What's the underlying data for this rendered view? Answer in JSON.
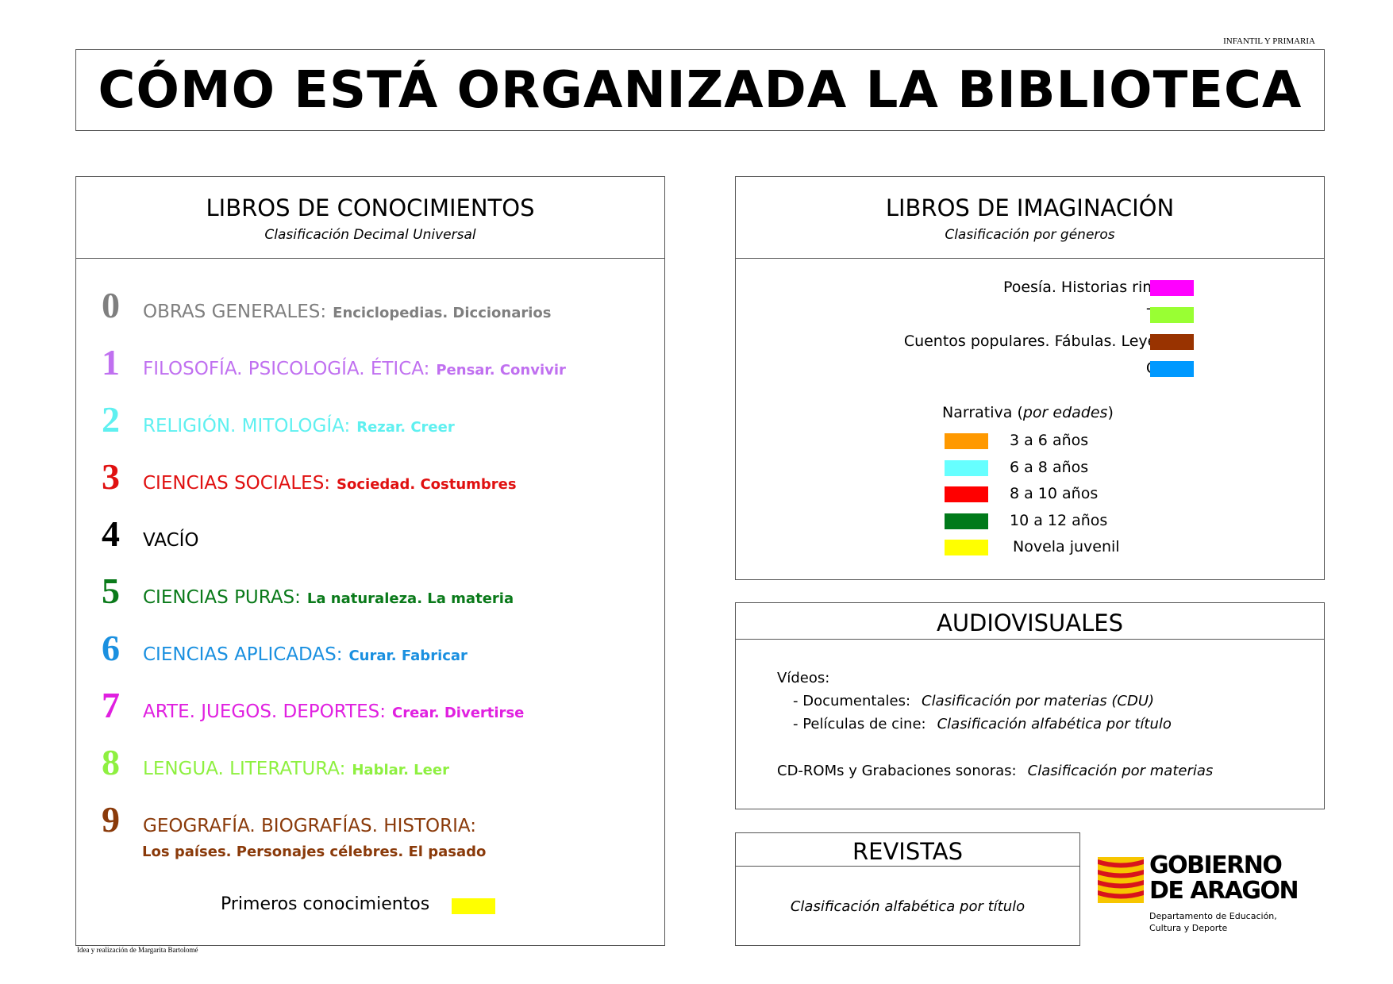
{
  "header": {
    "level_note": "INFANTIL Y PRIMARIA",
    "title": "CÓMO ESTÁ ORGANIZADA LA BIBLIOTECA"
  },
  "conocimientos": {
    "title": "LIBROS DE CONOCIMIENTOS",
    "subtitle": "Clasificación Decimal Universal",
    "items": [
      {
        "number": "0",
        "category": "OBRAS GENERALES:",
        "description": "Enciclopedias. Diccionarios",
        "color": "#7f7f7f"
      },
      {
        "number": "1",
        "category": "FILOSOFÍA. PSICOLOGÍA. ÉTICA:",
        "description": "Pensar. Convivir",
        "color": "#c070f0"
      },
      {
        "number": "2",
        "category": "RELIGIÓN. MITOLOGÍA:",
        "description": "Rezar. Creer",
        "color": "#5ff0f0"
      },
      {
        "number": "3",
        "category": "CIENCIAS SOCIALES:",
        "description": "Sociedad. Costumbres",
        "color": "#e01010"
      },
      {
        "number": "4",
        "category": "VACÍO",
        "description": "",
        "color": "#000000"
      },
      {
        "number": "5",
        "category": "CIENCIAS PURAS:",
        "description": "La naturaleza. La materia",
        "color": "#0a7a1a"
      },
      {
        "number": "6",
        "category": "CIENCIAS APLICADAS:",
        "description": "Curar. Fabricar",
        "color": "#1a90e0"
      },
      {
        "number": "7",
        "category": "ARTE. JUEGOS. DEPORTES:",
        "description": "Crear. Divertirse",
        "color": "#e020e0"
      },
      {
        "number": "8",
        "category": "LENGUA. LITERATURA:",
        "description": "Hablar. Leer",
        "color": "#8ef040"
      },
      {
        "number": "9",
        "category": "GEOGRAFÍA. BIOGRAFÍAS. HISTORIA:",
        "description": "Los países. Personajes célebres. El pasado",
        "color": "#8a3a0a"
      }
    ],
    "primeros": {
      "label": "Primeros conocimientos",
      "color": "#ffff00"
    }
  },
  "imaginacion": {
    "title": "LIBROS DE IMAGINACIÓN",
    "subtitle": "Clasificación por géneros",
    "genres": [
      {
        "label": "Poesía. Historias rimadas",
        "color": "#ff00ff"
      },
      {
        "label": "Teatro",
        "color": "#99ff33"
      },
      {
        "label": "Cuentos populares. Fábulas. Leyendas",
        "color": "#993300"
      },
      {
        "label": "Cómic",
        "color": "#0099ff"
      }
    ],
    "narrativa": {
      "label": "Narrativa (",
      "label_italic": "por edades",
      "label_end": ")"
    },
    "ages": [
      {
        "label": "3 a 6 años",
        "color": "#ff9900"
      },
      {
        "label": "6 a 8 años",
        "color": "#66ffff"
      },
      {
        "label": "8 a 10 años",
        "color": "#ff0000"
      },
      {
        "label": "10 a 12 años",
        "color": "#007a1a"
      },
      {
        "label": "Novela juvenil",
        "color": "#ffff00"
      }
    ]
  },
  "audiovisuales": {
    "title": "AUDIOVISUALES",
    "videos_label": "Vídeos:",
    "lines": [
      {
        "label": "- Documentales:",
        "value": "Clasificación por materias (CDU)"
      },
      {
        "label": "- Películas de cine:",
        "value": "Clasificación alfabética por título"
      },
      {
        "label": "CD-ROMs y Grabaciones sonoras:",
        "value": "Clasificación por materias"
      }
    ]
  },
  "revistas": {
    "title": "REVISTAS",
    "text": "Clasificación alfabética por título"
  },
  "logo": {
    "line1": "GOBIERNO",
    "line2": "DE ARAGON",
    "dept1": "Departamento de Educación,",
    "dept2": "Cultura y Deporte",
    "colors": {
      "red": "#d8141c",
      "yellow": "#f7c600"
    }
  },
  "footer": {
    "credit": "Idea y realización de Margarita Bartolomé"
  }
}
